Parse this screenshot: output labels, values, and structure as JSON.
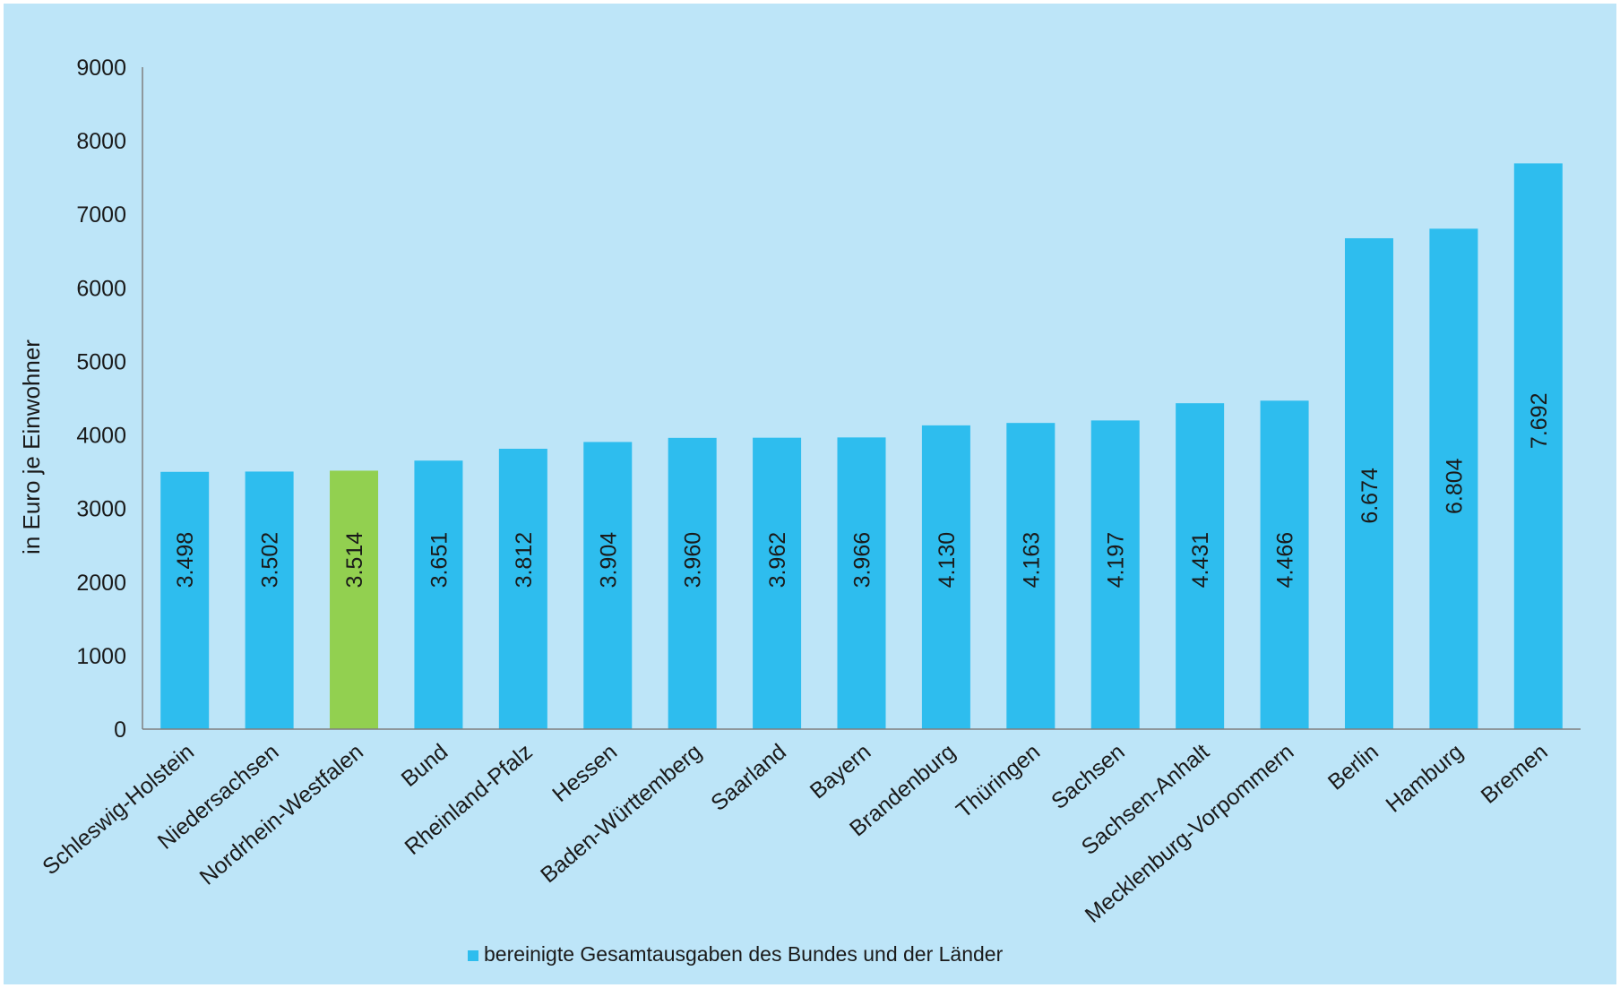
{
  "chart_data": {
    "type": "bar",
    "categories": [
      "Schleswig-Holstein",
      "Niedersachsen",
      "Nordrhein-Westfalen",
      "Bund",
      "Rheinland-Pfalz",
      "Hessen",
      "Baden-Württemberg",
      "Saarland",
      "Bayern",
      "Brandenburg",
      "Thüringen",
      "Sachsen",
      "Sachsen-Anhalt",
      "Mecklenburg-Vorpommern",
      "Berlin",
      "Hamburg",
      "Bremen"
    ],
    "series": [
      {
        "name": "bereinigte Gesamtausgaben des Bundes und der Länder",
        "values": [
          3498,
          3502,
          3514,
          3651,
          3812,
          3904,
          3960,
          3962,
          3966,
          4130,
          4163,
          4197,
          4431,
          4466,
          6674,
          6804,
          7692
        ],
        "labels": [
          "3.498",
          "3.502",
          "3.514",
          "3.651",
          "3.812",
          "3.904",
          "3.960",
          "3.962",
          "3.966",
          "4.130",
          "4.163",
          "4.197",
          "4.431",
          "4.466",
          "6.674",
          "6.804",
          "7.692"
        ]
      }
    ],
    "highlight_category": "Nordrhein-Westfalen",
    "ylabel": "in Euro je Einwohner",
    "ylim": [
      0,
      9000
    ],
    "yticks": [
      0,
      1000,
      2000,
      3000,
      4000,
      5000,
      6000,
      7000,
      8000,
      9000
    ],
    "grid": false,
    "legend_position": "bottom-center",
    "colors": {
      "background": "#bde5f8",
      "bar": "#2ebdee",
      "highlight": "#92d050",
      "axis": "#7f7f7f",
      "text": "#1a1a1a"
    }
  }
}
